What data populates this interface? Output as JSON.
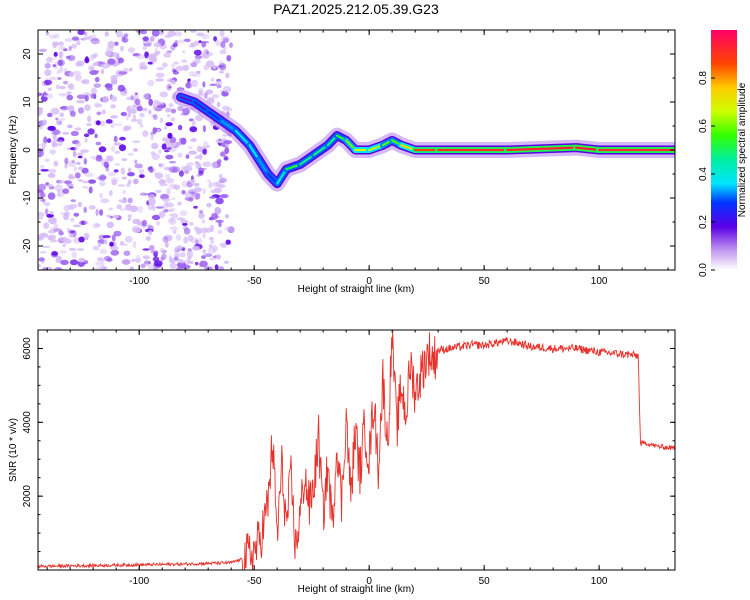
{
  "chart_data": [
    {
      "type": "heatmap",
      "title": "PAZ1.2025.212.05.39.G23",
      "xlabel": "Height of straight line (km)",
      "ylabel": "Frequency (Hz)",
      "xlim": [
        -144,
        133
      ],
      "ylim": [
        -25,
        25
      ],
      "x_ticks": [
        -100,
        -50,
        0,
        50,
        100
      ],
      "y_ticks": [
        -20,
        -10,
        0,
        10,
        20
      ],
      "colorbar": {
        "label": "Normalized spectral amplitude",
        "range": [
          0.0,
          1.0
        ],
        "ticks": [
          0.0,
          0.2,
          0.4,
          0.6,
          0.8
        ]
      },
      "ridge": {
        "x": [
          -82,
          -76,
          -70,
          -64,
          -58,
          -52,
          -48,
          -44,
          -40,
          -36,
          -30,
          -24,
          -18,
          -14,
          -10,
          -6,
          0,
          6,
          10,
          14,
          20,
          30,
          60,
          90,
          100,
          133
        ],
        "frequency": [
          11,
          10,
          8,
          6,
          4,
          1,
          -2,
          -5,
          -7,
          -4,
          -3,
          -1,
          1,
          3,
          2,
          0,
          0,
          1,
          2,
          1,
          0,
          0,
          0,
          0.5,
          0,
          0
        ],
        "amplitude": [
          0.15,
          0.2,
          0.25,
          0.3,
          0.35,
          0.4,
          0.35,
          0.3,
          0.25,
          0.6,
          0.45,
          0.5,
          0.45,
          0.5,
          0.55,
          0.65,
          0.7,
          0.6,
          0.55,
          0.6,
          0.85,
          0.9,
          0.92,
          0.95,
          0.93,
          0.9
        ]
      },
      "noise_region_x": [
        -144,
        -60
      ]
    },
    {
      "type": "line",
      "xlabel": "Height of straight line (km)",
      "ylabel": "SNR (10 * v/v)",
      "xlim": [
        -144,
        133
      ],
      "ylim": [
        0,
        6500
      ],
      "x_ticks": [
        -100,
        -50,
        0,
        50,
        100
      ],
      "y_ticks": [
        2000,
        4000,
        6000
      ],
      "series": [
        {
          "color": "#e8312b",
          "x": [
            -144,
            -120,
            -100,
            -80,
            -60,
            -55,
            -50,
            -47,
            -44,
            -42,
            -40,
            -38,
            -36,
            -34,
            -32,
            -30,
            -28,
            -26,
            -24,
            -22,
            -20,
            -18,
            -16,
            -14,
            -12,
            -10,
            -8,
            -6,
            -4,
            -2,
            0,
            2,
            4,
            6,
            8,
            10,
            12,
            14,
            16,
            18,
            20,
            22,
            24,
            26,
            28,
            30,
            35,
            40,
            45,
            50,
            55,
            60,
            65,
            70,
            80,
            90,
            100,
            110,
            117,
            118,
            120,
            125,
            133
          ],
          "y": [
            100,
            120,
            140,
            160,
            200,
            300,
            500,
            900,
            1800,
            3500,
            900,
            2800,
            1200,
            2500,
            600,
            1500,
            2600,
            1700,
            2300,
            3600,
            1500,
            2800,
            1200,
            3500,
            1800,
            4200,
            2000,
            3800,
            2600,
            3900,
            3000,
            4600,
            2800,
            5200,
            3300,
            6400,
            3800,
            5000,
            4200,
            5600,
            4800,
            5200,
            5600,
            5900,
            5700,
            5950,
            6000,
            6050,
            6100,
            6080,
            6150,
            6200,
            6150,
            6050,
            6000,
            6000,
            5900,
            5850,
            5800,
            3400,
            3450,
            3350,
            3300
          ]
        }
      ]
    }
  ]
}
